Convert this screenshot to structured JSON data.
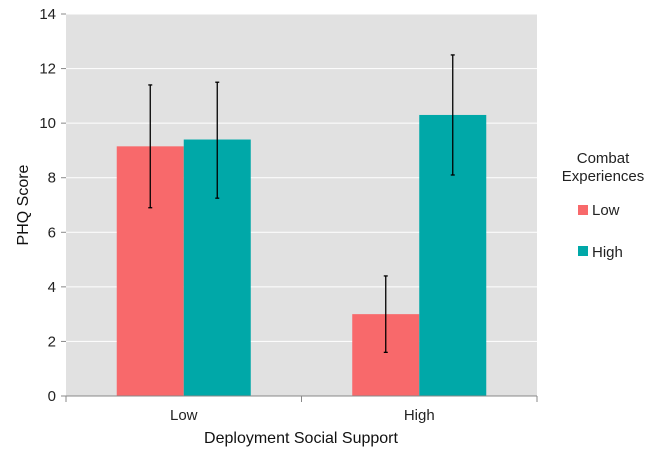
{
  "chart_data": {
    "type": "bar",
    "title": "",
    "xlabel": "Deployment Social Support",
    "ylabel": "PHQ Score",
    "ylim": [
      0,
      14
    ],
    "yticks": [
      0,
      2,
      4,
      6,
      8,
      10,
      12,
      14
    ],
    "grid": true,
    "categories": [
      "Low",
      "High"
    ],
    "legend": {
      "title_lines": [
        "Combat",
        "Experiences"
      ],
      "position": "right"
    },
    "series": [
      {
        "name": "Low",
        "color": "#f8696b",
        "values": [
          9.15,
          3.0
        ],
        "error_low": [
          6.9,
          1.6
        ],
        "error_high": [
          11.4,
          4.4
        ]
      },
      {
        "name": "High",
        "color": "#00a8a8",
        "values": [
          9.4,
          10.3
        ],
        "error_low": [
          7.25,
          8.1
        ],
        "error_high": [
          11.5,
          12.5
        ]
      }
    ]
  },
  "colors": {
    "plot_background": "#e1e1e1",
    "gridline": "#ffffff"
  }
}
